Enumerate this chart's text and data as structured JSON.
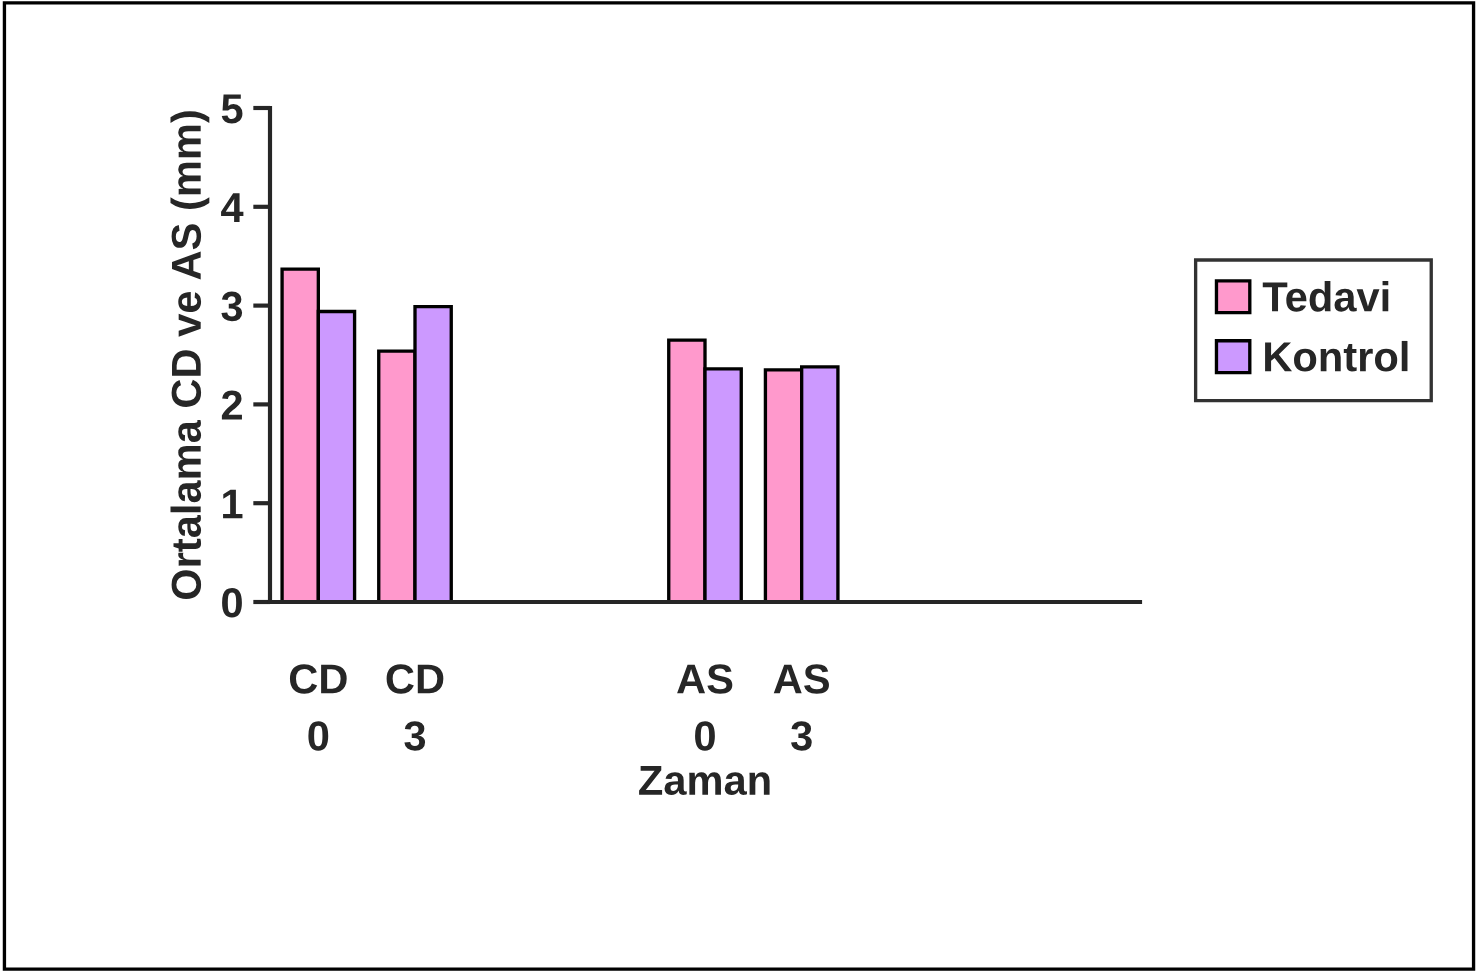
{
  "chart_data": {
    "type": "bar",
    "xlabel": "Zaman",
    "ylabel": "Ortalama CD ve AS (mm)",
    "categories": [
      "CD\n0",
      "CD\n3",
      null,
      null,
      "AS\n0",
      "AS\n3",
      null,
      null,
      null
    ],
    "series": [
      {
        "name": "Tedavi",
        "color": "#ff99cc",
        "values": [
          3.37,
          2.54,
          null,
          null,
          2.65,
          2.35,
          null,
          null,
          null
        ]
      },
      {
        "name": "Kontrol",
        "color": "#cc99ff",
        "values": [
          2.94,
          2.99,
          null,
          null,
          2.36,
          2.38,
          null,
          null,
          null
        ]
      }
    ],
    "ylim": [
      0,
      5
    ],
    "yticks": [
      0,
      1,
      2,
      3,
      4,
      5
    ],
    "grid": false,
    "legend": "right"
  }
}
